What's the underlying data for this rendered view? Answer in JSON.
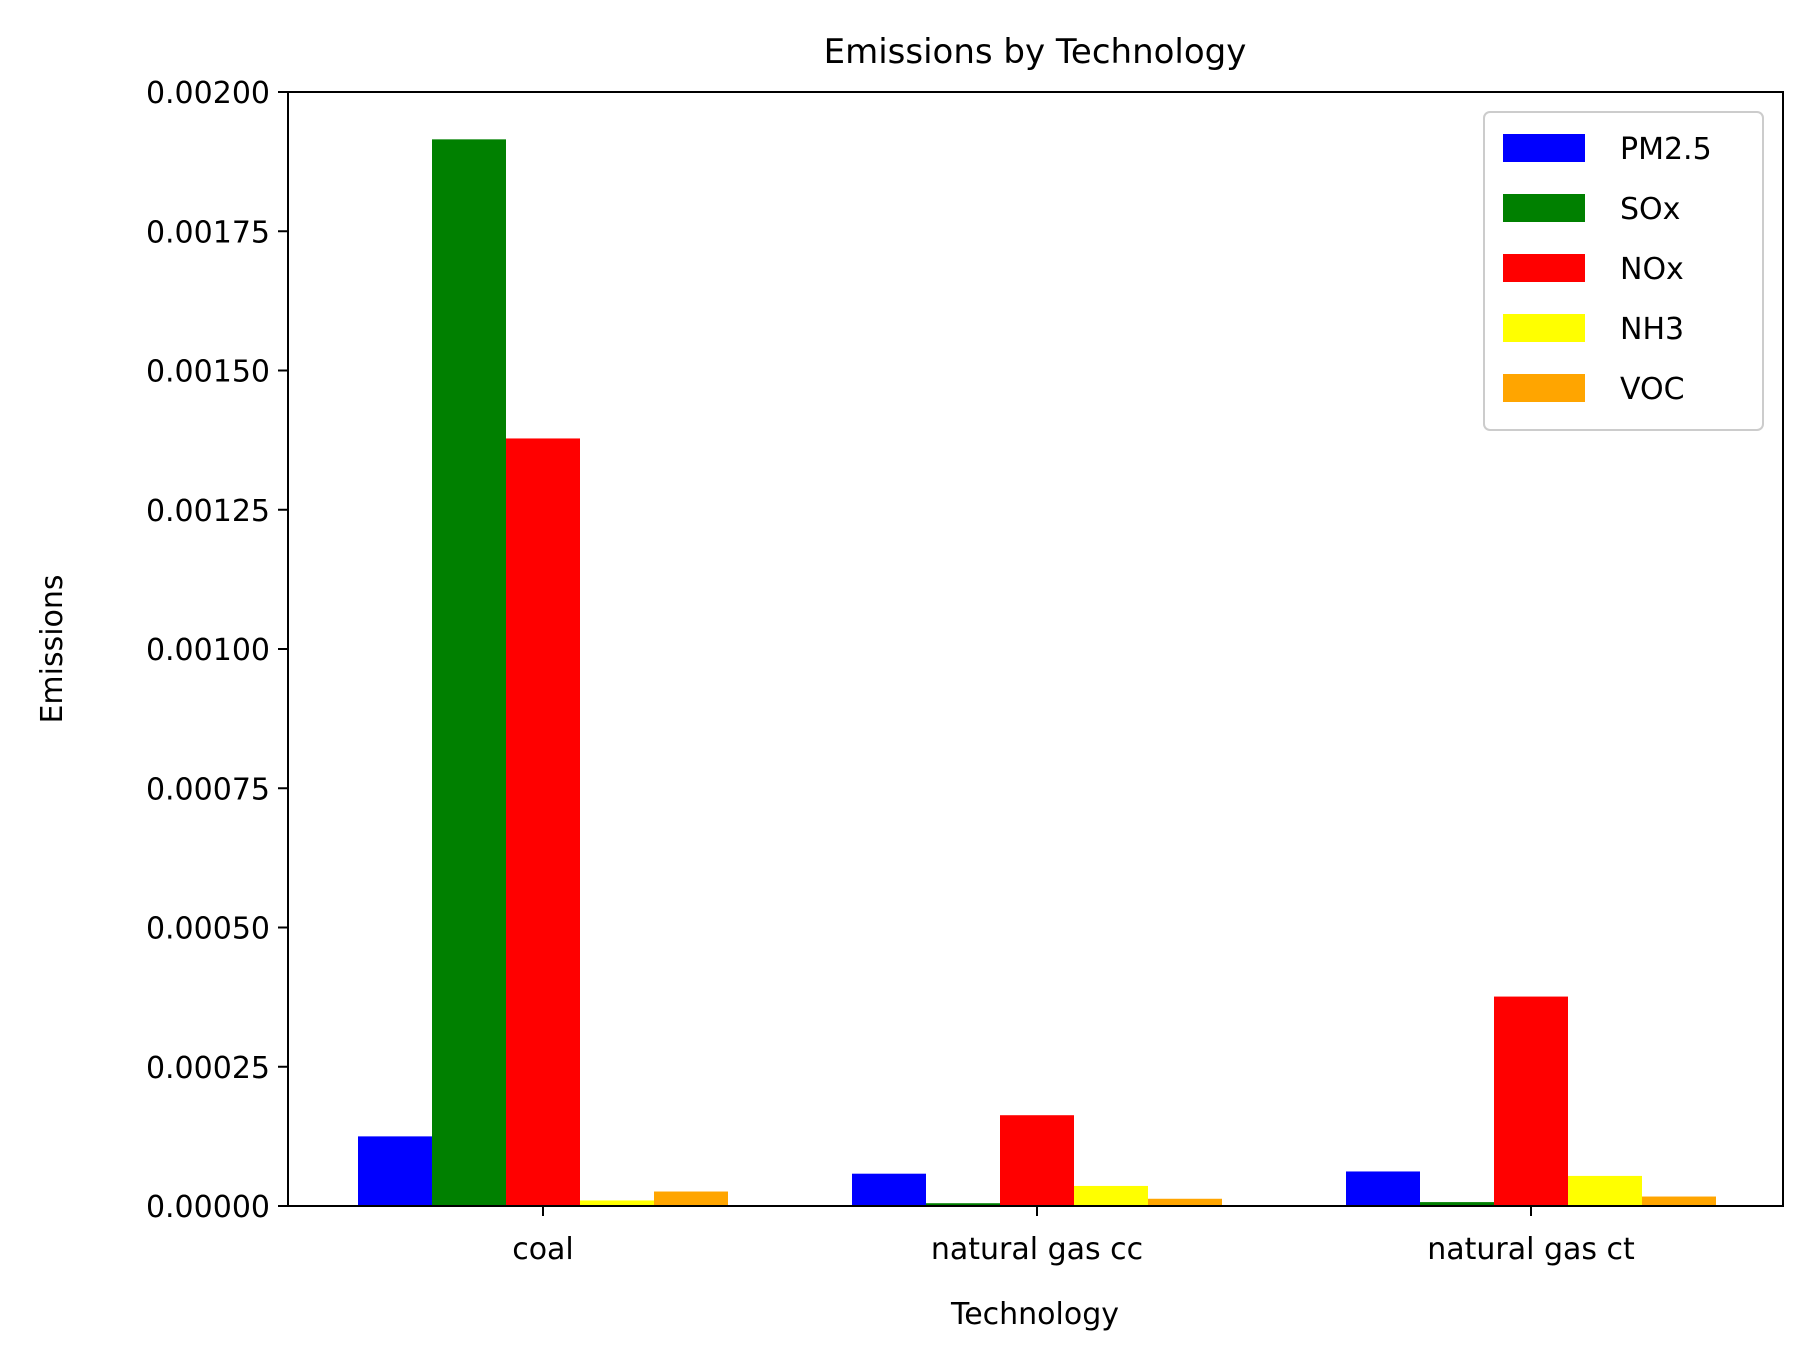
{
  "chart_data": {
    "type": "bar",
    "title": "Emissions by Technology",
    "xlabel": "Technology",
    "ylabel": "Emissions",
    "categories": [
      "coal",
      "natural gas cc",
      "natural gas ct"
    ],
    "series": [
      {
        "name": "PM2.5",
        "color": "#0000ff",
        "values": [
          0.000125,
          5.8e-05,
          6.2e-05
        ]
      },
      {
        "name": "SOx",
        "color": "#008000",
        "values": [
          0.001915,
          5e-06,
          7e-06
        ]
      },
      {
        "name": "NOx",
        "color": "#ff0000",
        "values": [
          0.001378,
          0.000163,
          0.000376
        ]
      },
      {
        "name": "NH3",
        "color": "#ffff00",
        "values": [
          1e-05,
          3.6e-05,
          5.4e-05
        ]
      },
      {
        "name": "VOC",
        "color": "#ffa500",
        "values": [
          2.6e-05,
          1.3e-05,
          1.7e-05
        ]
      }
    ],
    "ylim": [
      0,
      0.002
    ],
    "yticks": [
      "0.00000",
      "0.00025",
      "0.00050",
      "0.00075",
      "0.00100",
      "0.00125",
      "0.00150",
      "0.00175",
      "0.00200"
    ],
    "legend_position": "top-right",
    "grid": false
  }
}
